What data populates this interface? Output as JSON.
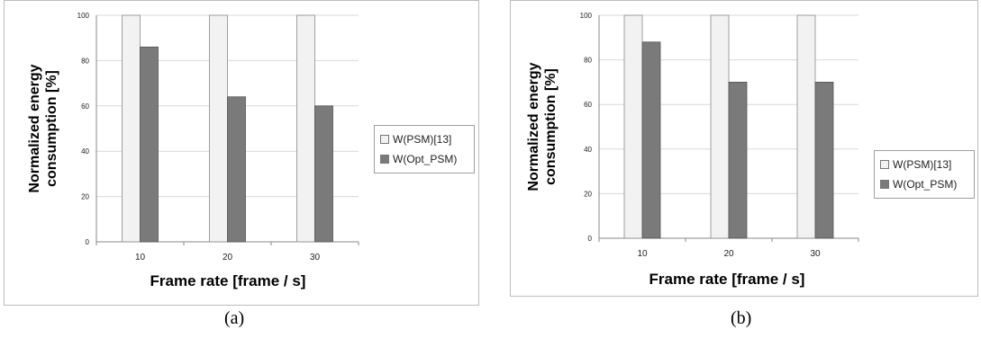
{
  "chart_data": [
    {
      "type": "bar",
      "panel_label": "(a)",
      "categories": [
        "10",
        "20",
        "30"
      ],
      "series": [
        {
          "name": "W(PSM)[13]",
          "values": [
            100,
            100,
            100
          ]
        },
        {
          "name": "W(Opt_PSM)",
          "values": [
            86,
            64,
            60
          ]
        }
      ],
      "xlabel": "Frame rate [frame / s]",
      "ylabel_lines": [
        "Normalized energy",
        "consumption [%]"
      ],
      "yticks": [
        "0",
        "20",
        "40",
        "60",
        "80",
        "100"
      ],
      "ylim": [
        0,
        100
      ],
      "grid": true,
      "legend_position": "right"
    },
    {
      "type": "bar",
      "panel_label": "(b)",
      "categories": [
        "10",
        "20",
        "30"
      ],
      "series": [
        {
          "name": "W(PSM)[13]",
          "values": [
            100,
            100,
            100
          ]
        },
        {
          "name": "W(Opt_PSM)",
          "values": [
            88,
            70,
            70
          ]
        }
      ],
      "xlabel": "Frame rate [frame / s]",
      "ylabel_lines": [
        "Normalized energy",
        "consumption [%]"
      ],
      "yticks": [
        "0",
        "20",
        "40",
        "60",
        "80",
        "100"
      ],
      "ylim": [
        0,
        100
      ],
      "grid": true,
      "legend_position": "right"
    }
  ],
  "colors": {
    "series1_fill": "#f2f2f2",
    "series1_stroke": "#8a8a8a",
    "series2_fill": "#7a7a7a",
    "series2_stroke": "#555555",
    "grid": "#d9d9d9",
    "axis": "#888888"
  }
}
